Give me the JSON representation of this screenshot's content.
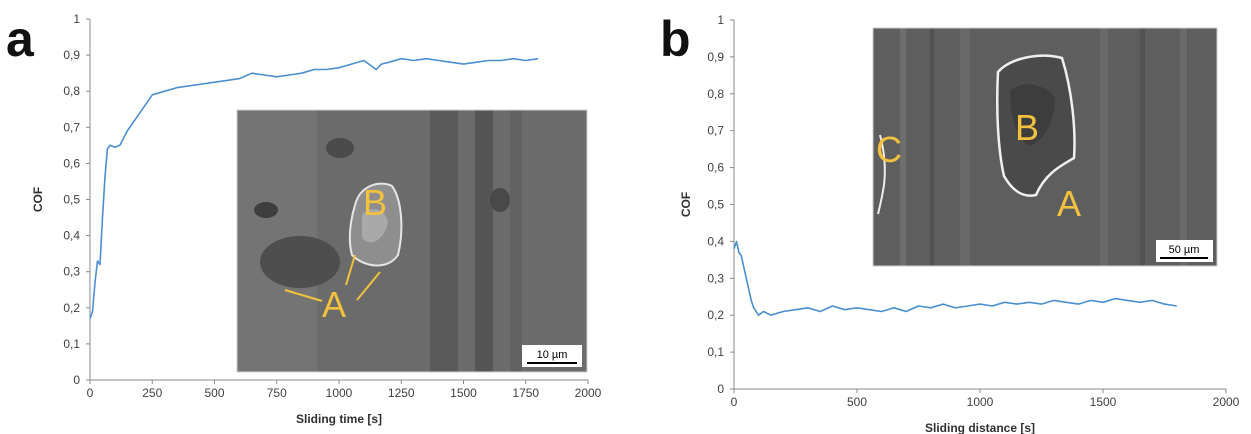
{
  "panels": {
    "a": {
      "letter": "a"
    },
    "b": {
      "letter": "b"
    }
  },
  "insets": {
    "a": {
      "labels": [
        "B",
        "A"
      ],
      "scale_bar": "10 µm"
    },
    "b": {
      "labels": [
        "B",
        "C",
        "A"
      ],
      "scale_bar": "50 µm"
    }
  },
  "colors": {
    "line": "#4a8fd0",
    "axis": "#888888",
    "sem_label": "#f2c13d",
    "sem_bg": "#5a5a5a"
  },
  "chart_data": [
    {
      "type": "line",
      "xlabel": "Sliding time [s]",
      "ylabel": "COF",
      "xlim": [
        0,
        2000
      ],
      "ylim": [
        0,
        1
      ],
      "xticks": [
        "0",
        "250",
        "500",
        "750",
        "1000",
        "1250",
        "1500",
        "1750",
        "2000"
      ],
      "yticks": [
        "0",
        "0,1",
        "0,2",
        "0,3",
        "0,4",
        "0,5",
        "0,6",
        "0,7",
        "0,8",
        "0,9",
        "1"
      ],
      "grid": false,
      "x": [
        0,
        10,
        20,
        30,
        40,
        50,
        60,
        70,
        80,
        100,
        120,
        150,
        200,
        250,
        300,
        350,
        400,
        450,
        500,
        550,
        600,
        650,
        700,
        750,
        800,
        850,
        900,
        950,
        1000,
        1050,
        1100,
        1150,
        1170,
        1200,
        1250,
        1300,
        1350,
        1400,
        1450,
        1500,
        1550,
        1600,
        1650,
        1700,
        1750,
        1800
      ],
      "y": [
        0.17,
        0.19,
        0.27,
        0.33,
        0.32,
        0.45,
        0.56,
        0.64,
        0.65,
        0.645,
        0.65,
        0.69,
        0.74,
        0.79,
        0.8,
        0.81,
        0.815,
        0.82,
        0.825,
        0.83,
        0.835,
        0.85,
        0.845,
        0.84,
        0.845,
        0.85,
        0.86,
        0.86,
        0.865,
        0.875,
        0.885,
        0.86,
        0.875,
        0.88,
        0.89,
        0.885,
        0.89,
        0.885,
        0.88,
        0.875,
        0.88,
        0.885,
        0.885,
        0.89,
        0.885,
        0.89
      ]
    },
    {
      "type": "line",
      "xlabel": "Sliding distance [s]",
      "ylabel": "COF",
      "xlim": [
        0,
        2000
      ],
      "ylim": [
        0,
        1
      ],
      "xticks": [
        "0",
        "500",
        "1000",
        "1500",
        "2000"
      ],
      "yticks": [
        "0",
        "0,1",
        "0,2",
        "0,3",
        "0,4",
        "0,5",
        "0,6",
        "0,7",
        "0,8",
        "0,9",
        "1"
      ],
      "grid": false,
      "x": [
        0,
        10,
        20,
        30,
        40,
        50,
        60,
        70,
        80,
        90,
        100,
        120,
        150,
        200,
        250,
        300,
        350,
        400,
        450,
        500,
        550,
        600,
        650,
        700,
        750,
        800,
        850,
        900,
        950,
        1000,
        1050,
        1100,
        1150,
        1200,
        1250,
        1300,
        1350,
        1400,
        1450,
        1500,
        1550,
        1600,
        1650,
        1700,
        1750,
        1800
      ],
      "y": [
        0.38,
        0.4,
        0.37,
        0.36,
        0.33,
        0.3,
        0.27,
        0.24,
        0.22,
        0.21,
        0.2,
        0.21,
        0.2,
        0.21,
        0.215,
        0.22,
        0.21,
        0.225,
        0.215,
        0.22,
        0.215,
        0.21,
        0.22,
        0.21,
        0.225,
        0.22,
        0.23,
        0.22,
        0.225,
        0.23,
        0.225,
        0.235,
        0.23,
        0.235,
        0.23,
        0.24,
        0.235,
        0.23,
        0.24,
        0.235,
        0.245,
        0.24,
        0.235,
        0.24,
        0.23,
        0.225
      ]
    }
  ]
}
